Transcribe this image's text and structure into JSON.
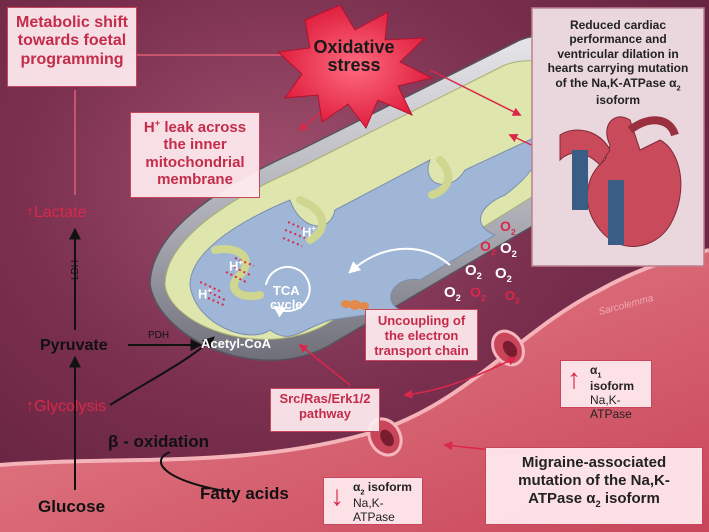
{
  "metabolic_shift": "Metabolic shift towards foetal programming",
  "oxidative_stress": "Oxidative stress",
  "cardiac_text": "Reduced cardiac performance and ventricular dilation in hearts carrying mutation of the Na,K-ATPase",
  "cardiac_alpha": "α",
  "cardiac_alpha_sub": "2",
  "cardiac_isoform": "isoform",
  "h_leak": "leak across the inner mitochondrial membrane",
  "h_symbol": "H",
  "h_sup": "+",
  "lactate": "Lactate",
  "ldh": "LDH",
  "pdh": "PDH",
  "pyruvate": "Pyruvate",
  "glycolysis": "Glycolysis",
  "glucose": "Glucose",
  "beta_oxidation": "β - oxidation",
  "fatty_acids": "Fatty acids",
  "acetyl_coa": "Acetyl-CoA",
  "tca": "TCA",
  "cycle": "cycle",
  "o2_label": "O",
  "o2_sub": "2",
  "uncoupling": "Uncoupling of the electron transport chain",
  "pathway_line1": "Src/Ras/Erk1/2",
  "pathway_line2": "pathway",
  "sarcolemma": "Sarcolemma",
  "alpha1_label": "α",
  "alpha1_sub": "1",
  "alpha1_isoform": "isoform",
  "na_k_atpase": "Na,K-ATPase",
  "alpha2_label": "α",
  "alpha2_sub": "2",
  "alpha2_isoform": "isoform",
  "migraine_text": "Migraine-associated mutation of the Na,K-ATPase",
  "migraine_alpha": "α",
  "migraine_alpha_sub": "2",
  "migraine_isoform": "isoform",
  "colors": {
    "accent": "#d9284a",
    "box_bg": "#ffecf0",
    "matrix": "#9fb6d6",
    "membrane": "#d9e0a8"
  }
}
